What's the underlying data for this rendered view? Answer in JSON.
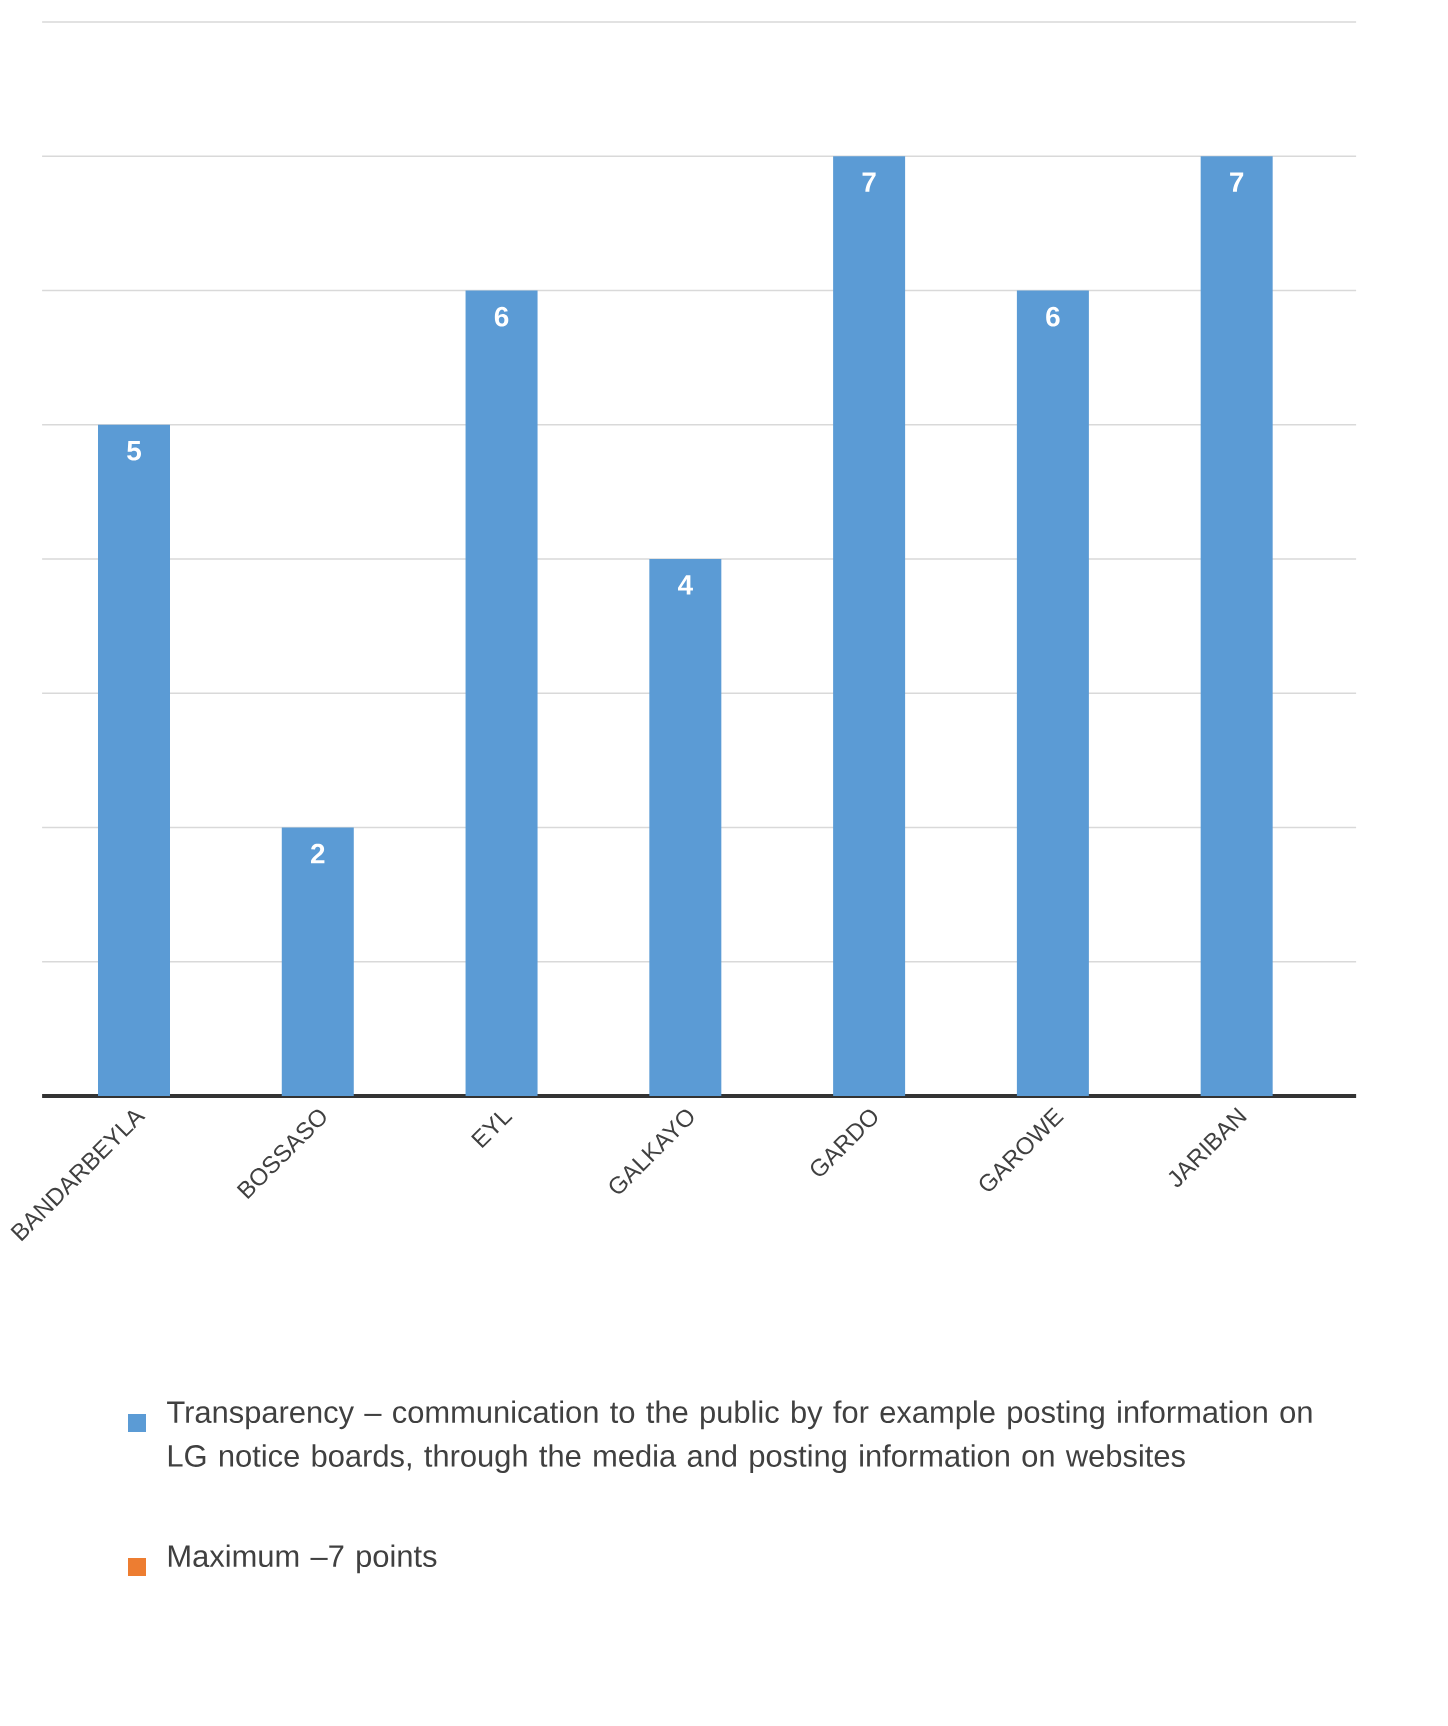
{
  "chart_data": {
    "type": "bar",
    "categories": [
      "BANDARBEYLA",
      "BOSSASO",
      "EYL",
      "GALKAYO",
      "GARDO",
      "GAROWE",
      "JARIBAN"
    ],
    "series": [
      {
        "name": "Transparency – communication to the public by for example posting information on LG notice boards, through the media and posting information on websites",
        "color": "#5b9bd5",
        "values": [
          5,
          2,
          6,
          4,
          7,
          6,
          7
        ]
      },
      {
        "name": "Maximum –7 points",
        "color": "#ed7d31",
        "values": [
          null,
          null,
          null,
          null,
          null,
          null,
          null
        ]
      }
    ],
    "grid": "y",
    "tick_labels": "x",
    "data_labels": true,
    "legend": "bottom"
  }
}
